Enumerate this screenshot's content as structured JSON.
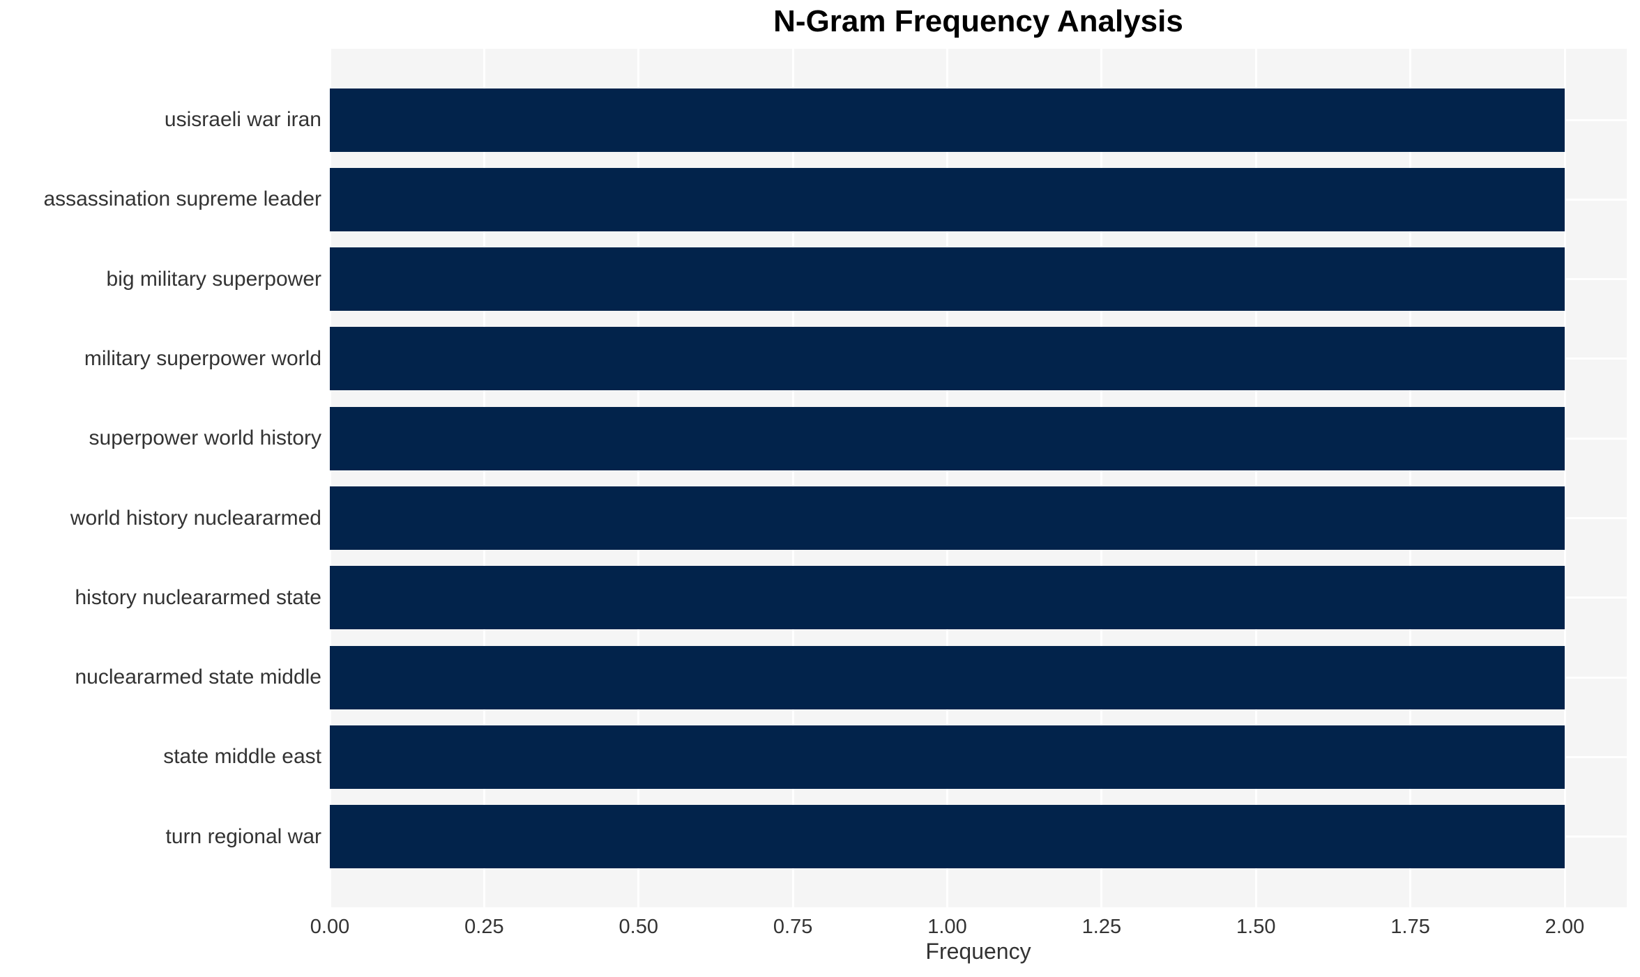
{
  "chart_data": {
    "type": "bar",
    "orientation": "horizontal",
    "title": "N-Gram Frequency Analysis",
    "xlabel": "Frequency",
    "ylabel": "",
    "categories": [
      "usisraeli war iran",
      "assassination supreme leader",
      "big military superpower",
      "military superpower world",
      "superpower world history",
      "world history nucleararmed",
      "history nucleararmed state",
      "nucleararmed state middle",
      "state middle east",
      "turn regional war"
    ],
    "values": [
      2,
      2,
      2,
      2,
      2,
      2,
      2,
      2,
      2,
      2
    ],
    "xlim": [
      0,
      2.1
    ],
    "xticks": [
      {
        "value": 0.0,
        "label": "0.00"
      },
      {
        "value": 0.25,
        "label": "0.25"
      },
      {
        "value": 0.5,
        "label": "0.50"
      },
      {
        "value": 0.75,
        "label": "0.75"
      },
      {
        "value": 1.0,
        "label": "1.00"
      },
      {
        "value": 1.25,
        "label": "1.25"
      },
      {
        "value": 1.5,
        "label": "1.50"
      },
      {
        "value": 1.75,
        "label": "1.75"
      },
      {
        "value": 2.0,
        "label": "2.00"
      }
    ],
    "grid": true,
    "legend": false,
    "colors": {
      "bar": "#02234b",
      "plot_background": "#f5f5f5",
      "gridline": "#ffffff",
      "tick_label": "#333333",
      "title": "#000000",
      "figure_background": "#ffffff"
    }
  }
}
